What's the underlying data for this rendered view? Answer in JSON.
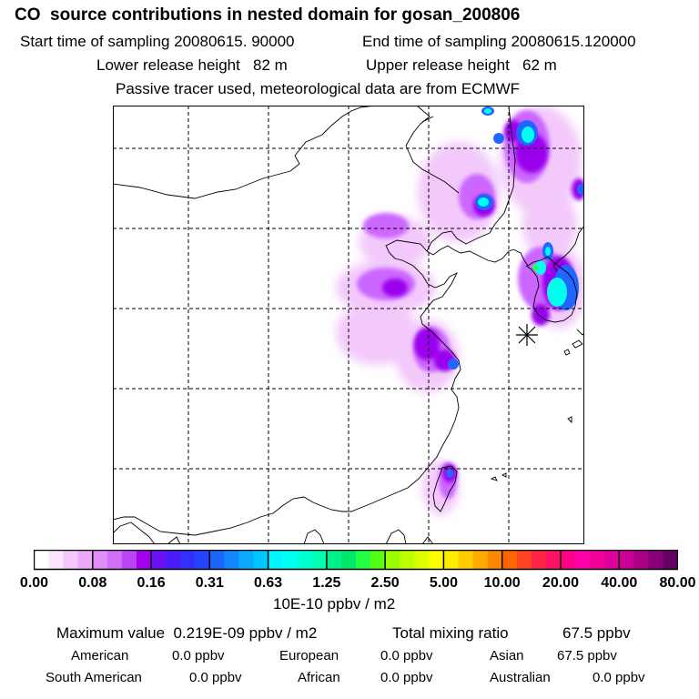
{
  "header": {
    "title": "CO  source contributions in nested domain for gosan_200806",
    "start_label": "Start time of sampling 20080615. 90000",
    "end_label": "End time of sampling 20080615.120000",
    "lower_label": "Lower release height   82 m",
    "upper_label": "Upper release height   62 m",
    "tracer_line": "Passive tracer used, meteorological data are from ECMWF"
  },
  "map": {
    "receptor_symbol": "asterisk",
    "colors": {
      "light": "#f3c9fb",
      "mid": "#cc66ff",
      "purple": "#9a00ee",
      "blue": "#2266ff",
      "cyan": "#00ffee",
      "green": "#22ff66"
    }
  },
  "colorbar": {
    "tick_labels": [
      "0.00",
      "0.08",
      "0.16",
      "0.31",
      "0.63",
      "1.25",
      "2.50",
      "5.00",
      "10.00",
      "20.00",
      "40.00",
      "80.00"
    ],
    "units": "10E-10 ppbv / m2",
    "colors": [
      "#ffffff",
      "#fbe4fd",
      "#f5c8fb",
      "#ecaaf8",
      "#df8df8",
      "#cf6ff8",
      "#bb44f6",
      "#a300f0",
      "#6a10f4",
      "#4a1cf8",
      "#3230fa",
      "#2644fc",
      "#1a66fe",
      "#1288fe",
      "#0aaaff",
      "#00c8ff",
      "#00f5ff",
      "#00ffee",
      "#00ffd0",
      "#00ffb0",
      "#00f08a",
      "#00e868",
      "#22ff44",
      "#55ff11",
      "#99ff00",
      "#bbff00",
      "#ddff00",
      "#ffff00",
      "#ffee00",
      "#ffcc00",
      "#ffaa00",
      "#ff8800",
      "#ff6600",
      "#ff4422",
      "#ff2244",
      "#ff1166",
      "#ff0088",
      "#ff00aa",
      "#ee0099",
      "#dd0099",
      "#cc0099",
      "#aa0088",
      "#880077",
      "#660066"
    ]
  },
  "summary": {
    "max_label": "Maximum value  0.219E-09 ppbv / m2",
    "total_label": "Total mixing ratio",
    "total_value": "67.5 ppbv",
    "regions": [
      {
        "name": "American",
        "value": "0.0 ppbv"
      },
      {
        "name": "European",
        "value": "0.0 ppbv"
      },
      {
        "name": "Asian",
        "value": "67.5 ppbv"
      },
      {
        "name": "South American",
        "value": "0.0 ppbv"
      },
      {
        "name": "African",
        "value": "0.0 ppbv"
      },
      {
        "name": "Australian",
        "value": "0.0 ppbv"
      }
    ]
  }
}
